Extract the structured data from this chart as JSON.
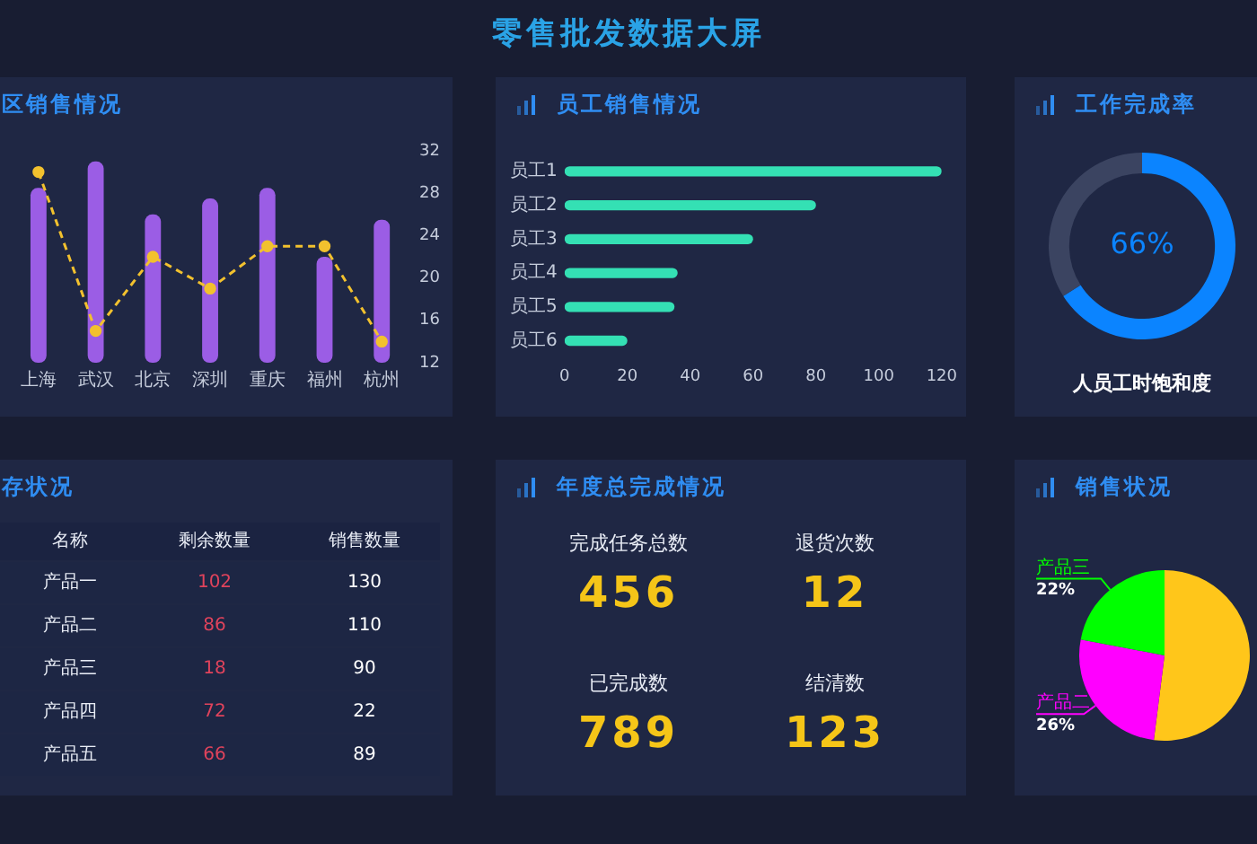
{
  "chart_data": [
    {
      "type": "other",
      "title": "零售批发数据大屏"
    },
    {
      "type": "bar",
      "title": "区销售情况",
      "categories": [
        "上海",
        "武汉",
        "北京",
        "深圳",
        "重庆",
        "福州",
        "杭州"
      ],
      "series": [
        {
          "type": "bar",
          "axis": "y2",
          "color": "#9b5de5",
          "values": [
            28.5,
            31,
            26,
            27.5,
            28.5,
            22,
            25.5
          ]
        },
        {
          "type": "line",
          "axis": "y2",
          "color": "#f2c12e",
          "values": [
            30,
            15,
            22,
            19,
            23,
            23,
            14
          ]
        }
      ],
      "y2lim": [
        12,
        32
      ],
      "y2ticks": [
        12,
        16,
        20,
        24,
        28,
        32
      ],
      "marker": "circle",
      "line_style": "dashed"
    },
    {
      "type": "bar",
      "orientation": "horizontal",
      "title": "员工销售情况",
      "categories": [
        "员工1",
        "员工2",
        "员工3",
        "员工4",
        "员工5",
        "员工6"
      ],
      "values": [
        120,
        80,
        60,
        36,
        35,
        20
      ],
      "color": "#34e0b4",
      "xlim": [
        0,
        120
      ],
      "xticks": [
        0,
        20,
        40,
        60,
        80,
        100,
        120
      ]
    },
    {
      "type": "donut",
      "title": "工作完成率",
      "categories": [
        null,
        null
      ],
      "values": [
        66,
        34
      ],
      "colors": [
        "#0b84ff",
        "#3b4461"
      ],
      "value_labels": [
        "66%",
        null
      ],
      "annotations": [
        "人员工时饱和度"
      ]
    },
    {
      "type": "other",
      "title": "存状况",
      "xlabel": "名称",
      "categories": [
        "产品一",
        "产品二",
        "产品三",
        "产品四",
        "产品五"
      ],
      "series": [
        {
          "name": "剩余数量",
          "values": [
            102,
            86,
            18,
            72,
            66
          ]
        },
        {
          "name": "销售数量",
          "values": [
            130,
            110,
            90,
            22,
            89
          ]
        }
      ],
      "data_labels": true
    },
    {
      "type": "other",
      "title": "年度总完成情况",
      "categories": [
        "完成任务总数",
        "退货次数",
        "已完成数",
        "结清数"
      ],
      "values": [
        456,
        12,
        789,
        123
      ],
      "data_labels": true
    },
    {
      "type": "pie",
      "title": "销售状况",
      "categories": [
        null,
        "产品二",
        "产品三"
      ],
      "values": [
        52,
        26,
        22
      ],
      "colors": [
        "#ffc61a",
        "#ff00ff",
        "#00ff00"
      ],
      "value_labels": [
        null,
        "26%",
        "22%"
      ]
    }
  ]
}
